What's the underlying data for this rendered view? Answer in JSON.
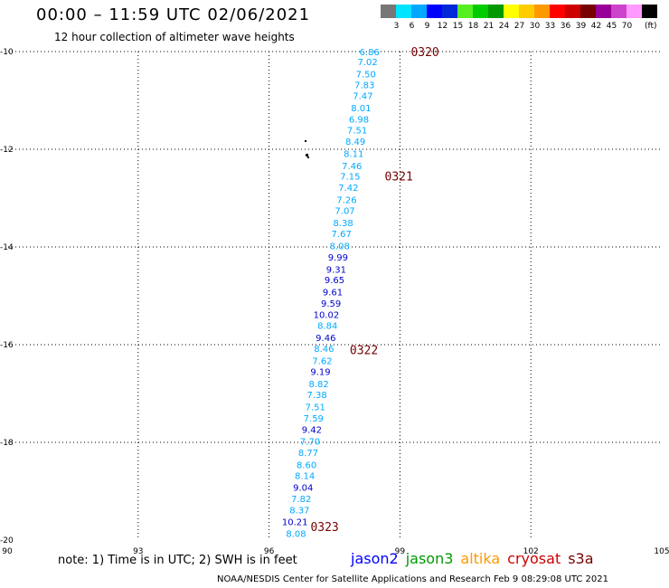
{
  "header": {
    "title": "00:00 – 11:59 UTC 02/06/2021",
    "subtitle": "12 hour collection of altimeter wave heights"
  },
  "colorbar": {
    "colors": [
      "#777777",
      "#00e5ff",
      "#00a8ff",
      "#0000ff",
      "#0028d8",
      "#55ee22",
      "#00cc00",
      "#009900",
      "#ffff00",
      "#ffcc00",
      "#ff9900",
      "#ff0000",
      "#cc0000",
      "#770000",
      "#990099",
      "#cc44cc",
      "#ff99ff",
      "#000000"
    ],
    "labels": [
      "3",
      "6",
      "9",
      "12",
      "15",
      "18",
      "21",
      "24",
      "27",
      "30",
      "33",
      "36",
      "39",
      "42",
      "45",
      "70"
    ],
    "unit": "(ft)"
  },
  "map": {
    "lon_range": [
      90,
      105
    ],
    "lat_range": [
      -20,
      -10
    ],
    "x_ticks": [
      "90",
      "93",
      "96",
      "99",
      "102",
      "105"
    ],
    "y_ticks": [
      "-10",
      "-12",
      "-14",
      "-16",
      "-18",
      "-20"
    ],
    "time_labels": [
      {
        "text": "0320",
        "lon": 99.25,
        "lat": -10.0
      },
      {
        "text": "0321",
        "lon": 98.65,
        "lat": -12.55
      },
      {
        "text": "0322",
        "lon": 97.85,
        "lat": -16.1
      },
      {
        "text": "0323",
        "lon": 96.95,
        "lat": -19.72
      }
    ],
    "points": [
      {
        "text": "6.86",
        "lon": 98.53,
        "lat": -10.0,
        "color": "#00a8ff"
      },
      {
        "text": "7.02",
        "lon": 98.49,
        "lat": -10.2,
        "color": "#00a8ff"
      },
      {
        "text": "7.50",
        "lon": 98.45,
        "lat": -10.45,
        "color": "#00a8ff"
      },
      {
        "text": "7.83",
        "lon": 98.42,
        "lat": -10.68,
        "color": "#00a8ff"
      },
      {
        "text": "7.47",
        "lon": 98.38,
        "lat": -10.9,
        "color": "#00a8ff"
      },
      {
        "text": "8.01",
        "lon": 98.34,
        "lat": -11.15,
        "color": "#00a8ff"
      },
      {
        "text": "6.98",
        "lon": 98.29,
        "lat": -11.38,
        "color": "#00a8ff"
      },
      {
        "text": "7.51",
        "lon": 98.25,
        "lat": -11.6,
        "color": "#00a8ff"
      },
      {
        "text": "8.49",
        "lon": 98.21,
        "lat": -11.83,
        "color": "#00a8ff"
      },
      {
        "text": "8.11",
        "lon": 98.17,
        "lat": -12.08,
        "color": "#00a8ff"
      },
      {
        "text": "7.46",
        "lon": 98.13,
        "lat": -12.33,
        "color": "#00a8ff"
      },
      {
        "text": "7.15",
        "lon": 98.09,
        "lat": -12.55,
        "color": "#00a8ff"
      },
      {
        "text": "7.42",
        "lon": 98.05,
        "lat": -12.78,
        "color": "#00a8ff"
      },
      {
        "text": "7.26",
        "lon": 98.01,
        "lat": -13.03,
        "color": "#00a8ff"
      },
      {
        "text": "7.07",
        "lon": 97.97,
        "lat": -13.25,
        "color": "#00a8ff"
      },
      {
        "text": "8.38",
        "lon": 97.93,
        "lat": -13.5,
        "color": "#00a8ff"
      },
      {
        "text": "7.67",
        "lon": 97.89,
        "lat": -13.72,
        "color": "#00a8ff"
      },
      {
        "text": "8.08",
        "lon": 97.85,
        "lat": -13.97,
        "color": "#00a8ff"
      },
      {
        "text": "9.99",
        "lon": 97.81,
        "lat": -14.2,
        "color": "#0000cc"
      },
      {
        "text": "9.31",
        "lon": 97.77,
        "lat": -14.45,
        "color": "#0000cc"
      },
      {
        "text": "9.65",
        "lon": 97.73,
        "lat": -14.67,
        "color": "#0000cc"
      },
      {
        "text": "9.61",
        "lon": 97.69,
        "lat": -14.92,
        "color": "#0000cc"
      },
      {
        "text": "9.59",
        "lon": 97.65,
        "lat": -15.15,
        "color": "#0000cc"
      },
      {
        "text": "10.02",
        "lon": 97.61,
        "lat": -15.38,
        "color": "#0000cc"
      },
      {
        "text": "8.84",
        "lon": 97.57,
        "lat": -15.6,
        "color": "#00a8ff"
      },
      {
        "text": "9.46",
        "lon": 97.53,
        "lat": -15.85,
        "color": "#0000cc"
      },
      {
        "text": "8.46",
        "lon": 97.49,
        "lat": -16.07,
        "color": "#00a8ff"
      },
      {
        "text": "7.62",
        "lon": 97.45,
        "lat": -16.32,
        "color": "#00a8ff"
      },
      {
        "text": "9.19",
        "lon": 97.41,
        "lat": -16.55,
        "color": "#0000cc"
      },
      {
        "text": "8.82",
        "lon": 97.37,
        "lat": -16.8,
        "color": "#00a8ff"
      },
      {
        "text": "7.38",
        "lon": 97.33,
        "lat": -17.02,
        "color": "#00a8ff"
      },
      {
        "text": "7.51",
        "lon": 97.29,
        "lat": -17.27,
        "color": "#00a8ff"
      },
      {
        "text": "7.59",
        "lon": 97.25,
        "lat": -17.5,
        "color": "#00a8ff"
      },
      {
        "text": "9.42",
        "lon": 97.21,
        "lat": -17.73,
        "color": "#0000cc"
      },
      {
        "text": "7.70",
        "lon": 97.17,
        "lat": -17.97,
        "color": "#00a8ff"
      },
      {
        "text": "8.77",
        "lon": 97.13,
        "lat": -18.2,
        "color": "#00a8ff"
      },
      {
        "text": "8.60",
        "lon": 97.09,
        "lat": -18.45,
        "color": "#00a8ff"
      },
      {
        "text": "8.14",
        "lon": 97.05,
        "lat": -18.68,
        "color": "#00a8ff"
      },
      {
        "text": "9.04",
        "lon": 97.01,
        "lat": -18.92,
        "color": "#0000cc"
      },
      {
        "text": "7.82",
        "lon": 96.97,
        "lat": -19.15,
        "color": "#00a8ff"
      },
      {
        "text": "8.37",
        "lon": 96.93,
        "lat": -19.38,
        "color": "#00a8ff"
      },
      {
        "text": "10.21",
        "lon": 96.89,
        "lat": -19.62,
        "color": "#0000cc"
      },
      {
        "text": "8.08",
        "lon": 96.85,
        "lat": -19.86,
        "color": "#00a8ff"
      }
    ]
  },
  "note": "note: 1) Time is in UTC; 2) SWH is in feet",
  "legend": [
    {
      "label": "jason2",
      "color": "#0000ff"
    },
    {
      "label": "jason3",
      "color": "#009900"
    },
    {
      "label": "altika",
      "color": "#ff9900"
    },
    {
      "label": "cryosat",
      "color": "#cc0000"
    },
    {
      "label": "s3a",
      "color": "#770000"
    }
  ],
  "footer": "NOAA/NESDIS Center for Satellite Applications and Research    Feb  9 08:29:08 UTC 2021"
}
